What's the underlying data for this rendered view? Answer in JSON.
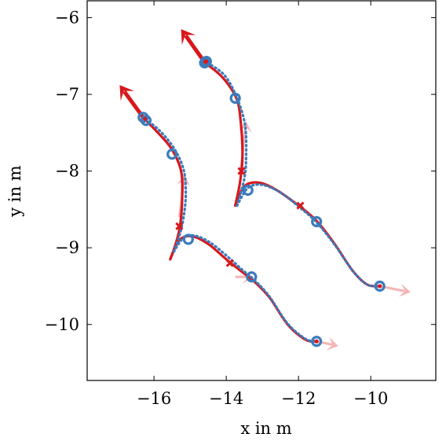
{
  "chart_data": {
    "type": "line",
    "title": "",
    "xlabel": "x in m",
    "ylabel": "y in m",
    "xlim": [
      -17.85,
      -8.2
    ],
    "ylim": [
      -10.73,
      -5.78
    ],
    "x_ticks": [
      {
        "value": -16,
        "label": "−16"
      },
      {
        "value": -14,
        "label": "−14"
      },
      {
        "value": -12,
        "label": "−12"
      },
      {
        "value": -10,
        "label": "−10"
      }
    ],
    "y_ticks": [
      {
        "value": -6,
        "label": "−6"
      },
      {
        "value": -7,
        "label": "−7"
      },
      {
        "value": -8,
        "label": "−8"
      },
      {
        "value": -9,
        "label": "−9"
      },
      {
        "value": -10,
        "label": "−10"
      }
    ],
    "grid": false,
    "legend": "none",
    "colors": {
      "red": "#d7191c",
      "blue": "#3a7cbd",
      "pink_arrow": "#f4b4b5"
    },
    "series": [
      {
        "kind": "red-path",
        "points": [
          [
            -15.55,
            -9.15
          ],
          [
            -15.4,
            -8.95
          ],
          [
            -15.28,
            -8.72
          ],
          [
            -15.22,
            -8.35
          ],
          [
            -15.25,
            -8.0
          ],
          [
            -15.5,
            -7.72
          ],
          [
            -15.85,
            -7.52
          ],
          [
            -16.2,
            -7.35
          ],
          [
            -16.3,
            -7.3
          ]
        ]
      },
      {
        "kind": "blue-dotted",
        "points": [
          [
            -15.45,
            -9.05
          ],
          [
            -15.3,
            -8.85
          ],
          [
            -15.18,
            -8.6
          ],
          [
            -15.12,
            -8.3
          ],
          [
            -15.18,
            -7.98
          ],
          [
            -15.45,
            -7.7
          ],
          [
            -15.85,
            -7.47
          ],
          [
            -16.25,
            -7.32
          ]
        ]
      },
      {
        "kind": "red-path",
        "points": [
          [
            -15.55,
            -9.15
          ],
          [
            -15.3,
            -8.9
          ],
          [
            -14.95,
            -8.85
          ],
          [
            -14.5,
            -8.95
          ],
          [
            -14.0,
            -9.15
          ],
          [
            -13.6,
            -9.3
          ],
          [
            -13.2,
            -9.45
          ],
          [
            -12.8,
            -9.65
          ],
          [
            -12.3,
            -10.0
          ],
          [
            -11.8,
            -10.2
          ],
          [
            -11.5,
            -10.22
          ]
        ]
      },
      {
        "kind": "blue-dotted",
        "points": [
          [
            -15.45,
            -9.05
          ],
          [
            -15.2,
            -8.88
          ],
          [
            -14.9,
            -8.84
          ],
          [
            -14.45,
            -8.93
          ],
          [
            -13.95,
            -9.12
          ],
          [
            -13.55,
            -9.29
          ],
          [
            -13.2,
            -9.43
          ],
          [
            -12.8,
            -9.64
          ],
          [
            -12.3,
            -9.99
          ],
          [
            -11.8,
            -10.19
          ],
          [
            -11.5,
            -10.22
          ]
        ]
      },
      {
        "kind": "red-path",
        "points": [
          [
            -13.75,
            -8.45
          ],
          [
            -13.62,
            -8.15
          ],
          [
            -13.55,
            -7.8
          ],
          [
            -13.6,
            -7.35
          ],
          [
            -13.72,
            -7.05
          ],
          [
            -14.1,
            -6.78
          ],
          [
            -14.55,
            -6.6
          ],
          [
            -14.65,
            -6.55
          ]
        ]
      },
      {
        "kind": "blue-dotted",
        "points": [
          [
            -13.7,
            -8.45
          ],
          [
            -13.5,
            -8.1
          ],
          [
            -13.45,
            -7.8
          ],
          [
            -13.48,
            -7.4
          ],
          [
            -13.7,
            -7.05
          ],
          [
            -14.05,
            -6.75
          ],
          [
            -14.55,
            -6.58
          ]
        ]
      },
      {
        "kind": "red-path",
        "points": [
          [
            -13.75,
            -8.45
          ],
          [
            -13.5,
            -8.2
          ],
          [
            -13.1,
            -8.15
          ],
          [
            -12.6,
            -8.25
          ],
          [
            -12.0,
            -8.45
          ],
          [
            -11.5,
            -8.65
          ],
          [
            -11.0,
            -8.95
          ],
          [
            -10.5,
            -9.3
          ],
          [
            -10.1,
            -9.48
          ],
          [
            -9.75,
            -9.5
          ]
        ]
      },
      {
        "kind": "blue-dotted",
        "points": [
          [
            -13.7,
            -8.45
          ],
          [
            -13.4,
            -8.22
          ],
          [
            -13.0,
            -8.18
          ],
          [
            -12.5,
            -8.28
          ],
          [
            -11.95,
            -8.48
          ],
          [
            -11.5,
            -8.67
          ],
          [
            -11.0,
            -8.96
          ],
          [
            -10.5,
            -9.3
          ],
          [
            -10.1,
            -9.48
          ],
          [
            -9.75,
            -9.5
          ]
        ]
      }
    ],
    "blue_circles": [
      [
        -16.3,
        -7.3
      ],
      [
        -16.22,
        -7.34
      ],
      [
        -15.5,
        -7.78
      ],
      [
        -15.05,
        -8.89
      ],
      [
        -13.3,
        -9.38
      ],
      [
        -11.5,
        -10.22
      ],
      [
        -14.55,
        -6.57
      ],
      [
        -14.6,
        -6.59
      ],
      [
        -13.75,
        -7.05
      ],
      [
        -13.4,
        -8.25
      ],
      [
        -11.5,
        -8.66
      ],
      [
        -9.75,
        -9.5
      ]
    ],
    "red_dots": [
      [
        -16.25,
        -7.32
      ],
      [
        -14.55,
        -6.57
      ],
      [
        -11.5,
        -10.22
      ],
      [
        -9.75,
        -9.5
      ]
    ],
    "red_crosses": [
      [
        -15.3,
        -8.72
      ],
      [
        -13.9,
        -9.2
      ],
      [
        -13.58,
        -8.0
      ],
      [
        -11.95,
        -8.45
      ]
    ],
    "red_arrows": [
      {
        "from": [
          -16.3,
          -7.3
        ],
        "to": [
          -16.95,
          -6.88
        ]
      },
      {
        "from": [
          -14.6,
          -6.58
        ],
        "to": [
          -15.25,
          -6.15
        ]
      }
    ],
    "pink_arrows": [
      {
        "from": [
          -15.3,
          -8.6
        ],
        "to": [
          -15.15,
          -8.05
        ]
      },
      {
        "from": [
          -13.6,
          -8.0
        ],
        "to": [
          -13.45,
          -7.35
        ]
      },
      {
        "from": [
          -13.75,
          -9.38
        ],
        "to": [
          -13.25,
          -9.38
        ]
      },
      {
        "from": [
          -11.5,
          -10.22
        ],
        "to": [
          -10.9,
          -10.28
        ]
      },
      {
        "from": [
          -9.75,
          -9.5
        ],
        "to": [
          -8.9,
          -9.58
        ]
      }
    ]
  }
}
